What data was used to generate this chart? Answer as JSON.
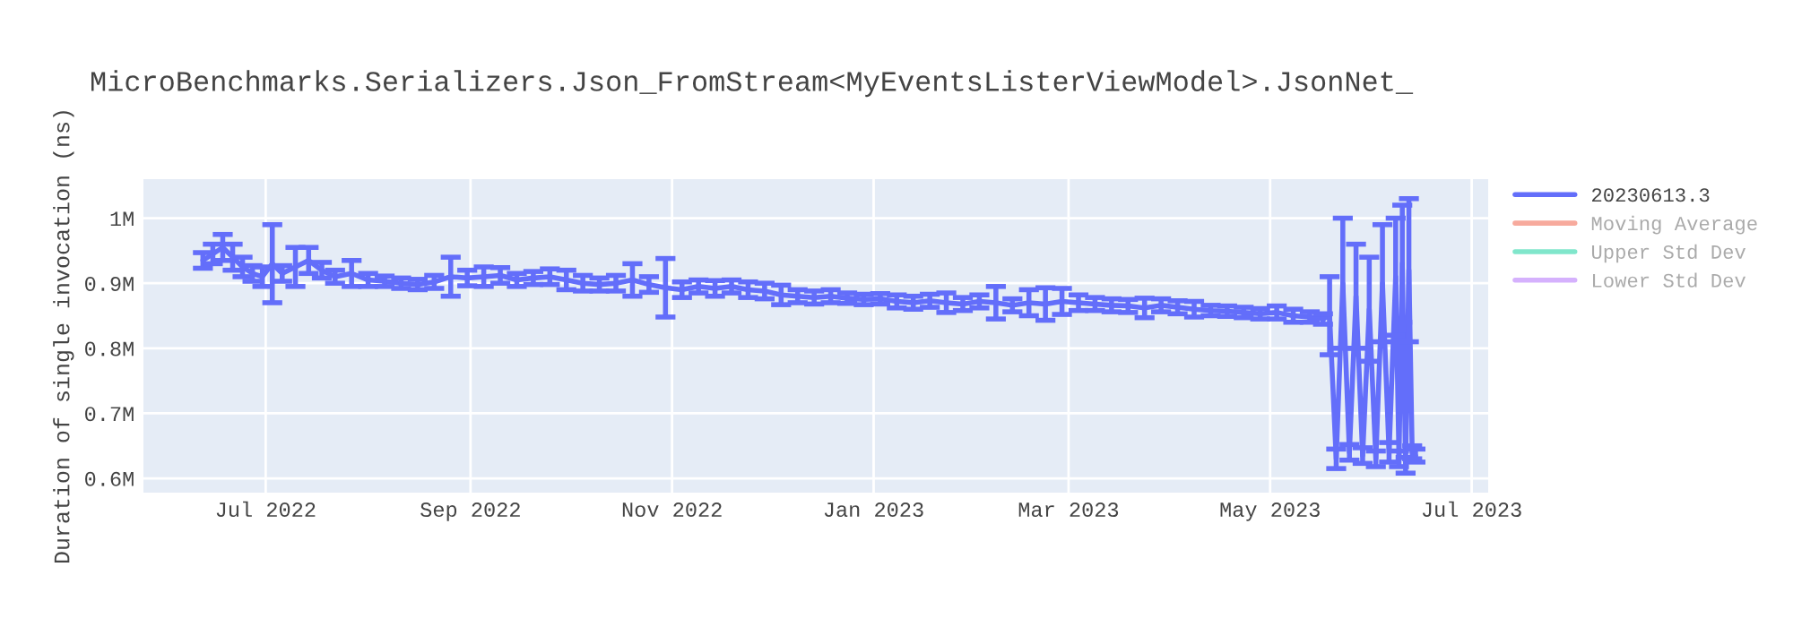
{
  "chart_data": {
    "type": "line",
    "title": "MicroBenchmarks.Serializers.Json_FromStream<MyEventsListerViewModel>.JsonNet_",
    "ylabel": "Duration of single invocation (ns)",
    "xlim": [
      "2022-05-25",
      "2023-07-06"
    ],
    "xticks": [
      {
        "value": "2022-07-01",
        "label": "Jul 2022"
      },
      {
        "value": "2022-09-01",
        "label": "Sep 2022"
      },
      {
        "value": "2022-11-01",
        "label": "Nov 2022"
      },
      {
        "value": "2023-01-01",
        "label": "Jan 2023"
      },
      {
        "value": "2023-03-01",
        "label": "Mar 2023"
      },
      {
        "value": "2023-05-01",
        "label": "May 2023"
      },
      {
        "value": "2023-07-01",
        "label": "Jul 2023"
      }
    ],
    "ylim": [
      578000,
      1060000
    ],
    "yticks": [
      {
        "value": 600000,
        "label": "0.6M"
      },
      {
        "value": 700000,
        "label": "0.7M"
      },
      {
        "value": 800000,
        "label": "0.8M"
      },
      {
        "value": 900000,
        "label": "0.9M"
      },
      {
        "value": 1000000,
        "label": "1M"
      }
    ],
    "grid": true,
    "legend": "top right",
    "marker": "none",
    "line_style": "solid",
    "series": [
      {
        "name": "20230613.3",
        "color": "#636efa",
        "x": [
          "2022-06-12",
          "2022-06-15",
          "2022-06-18",
          "2022-06-21",
          "2022-06-24",
          "2022-06-27",
          "2022-06-30",
          "2022-07-03",
          "2022-07-06",
          "2022-07-10",
          "2022-07-14",
          "2022-07-18",
          "2022-07-22",
          "2022-07-27",
          "2022-08-01",
          "2022-08-06",
          "2022-08-11",
          "2022-08-16",
          "2022-08-21",
          "2022-08-26",
          "2022-08-31",
          "2022-09-05",
          "2022-09-10",
          "2022-09-15",
          "2022-09-20",
          "2022-09-25",
          "2022-09-30",
          "2022-10-05",
          "2022-10-10",
          "2022-10-15",
          "2022-10-20",
          "2022-10-25",
          "2022-10-30",
          "2022-11-04",
          "2022-11-09",
          "2022-11-14",
          "2022-11-19",
          "2022-11-24",
          "2022-11-29",
          "2022-12-04",
          "2022-12-09",
          "2022-12-14",
          "2022-12-19",
          "2022-12-24",
          "2022-12-29",
          "2023-01-03",
          "2023-01-08",
          "2023-01-13",
          "2023-01-18",
          "2023-01-23",
          "2023-01-28",
          "2023-02-02",
          "2023-02-07",
          "2023-02-12",
          "2023-02-17",
          "2023-02-22",
          "2023-02-27",
          "2023-03-04",
          "2023-03-09",
          "2023-03-14",
          "2023-03-19",
          "2023-03-24",
          "2023-03-29",
          "2023-04-03",
          "2023-04-08",
          "2023-04-13",
          "2023-04-18",
          "2023-04-23",
          "2023-04-28",
          "2023-05-03",
          "2023-05-08",
          "2023-05-13",
          "2023-05-17",
          "2023-05-19",
          "2023-05-21",
          "2023-05-23",
          "2023-05-25",
          "2023-05-27",
          "2023-05-29",
          "2023-05-31",
          "2023-06-02",
          "2023-06-04",
          "2023-06-06",
          "2023-06-08",
          "2023-06-09",
          "2023-06-10",
          "2023-06-11",
          "2023-06-12",
          "2023-06-13",
          "2023-06-14"
        ],
        "values": [
          935000,
          945000,
          955000,
          940000,
          925000,
          915000,
          910000,
          930000,
          915000,
          925000,
          935000,
          920000,
          910000,
          915000,
          905000,
          903000,
          900000,
          898000,
          902000,
          910000,
          908000,
          910000,
          912000,
          905000,
          908000,
          910000,
          905000,
          900000,
          898000,
          900000,
          905000,
          898000,
          893000,
          890000,
          895000,
          892000,
          895000,
          890000,
          888000,
          882000,
          880000,
          878000,
          880000,
          877000,
          875000,
          876000,
          872000,
          870000,
          873000,
          870000,
          868000,
          872000,
          870000,
          866000,
          870000,
          868000,
          872000,
          870000,
          868000,
          866000,
          865000,
          862000,
          866000,
          863000,
          860000,
          858000,
          857000,
          855000,
          853000,
          855000,
          850000,
          848000,
          845000,
          850000,
          630000,
          900000,
          640000,
          880000,
          635000,
          860000,
          630000,
          900000,
          640000,
          910000,
          630000,
          930000,
          620000,
          920000,
          640000,
          635000
        ],
        "errors": [
          12000,
          15000,
          20000,
          20000,
          15000,
          12000,
          15000,
          60000,
          12000,
          30000,
          20000,
          12000,
          10000,
          20000,
          10000,
          8000,
          8000,
          8000,
          10000,
          30000,
          12000,
          15000,
          12000,
          10000,
          10000,
          12000,
          15000,
          12000,
          10000,
          12000,
          25000,
          12000,
          45000,
          12000,
          10000,
          12000,
          10000,
          12000,
          12000,
          15000,
          10000,
          10000,
          10000,
          8000,
          8000,
          8000,
          10000,
          10000,
          10000,
          15000,
          10000,
          10000,
          25000,
          10000,
          20000,
          25000,
          20000,
          12000,
          10000,
          10000,
          10000,
          15000,
          10000,
          10000,
          12000,
          8000,
          8000,
          8000,
          8000,
          10000,
          10000,
          8000,
          8000,
          60000,
          15000,
          100000,
          12000,
          80000,
          12000,
          80000,
          12000,
          90000,
          15000,
          90000,
          12000,
          90000,
          12000,
          110000,
          10000,
          10000
        ]
      },
      {
        "name": "Moving Average",
        "color": "#f7aa9d",
        "values": [
          null
        ]
      },
      {
        "name": "Upper Std Dev",
        "color": "#80e6cb",
        "values": [
          null
        ]
      },
      {
        "name": "Lower Std Dev",
        "color": "#d5b1fd",
        "values": [
          null
        ]
      }
    ]
  }
}
